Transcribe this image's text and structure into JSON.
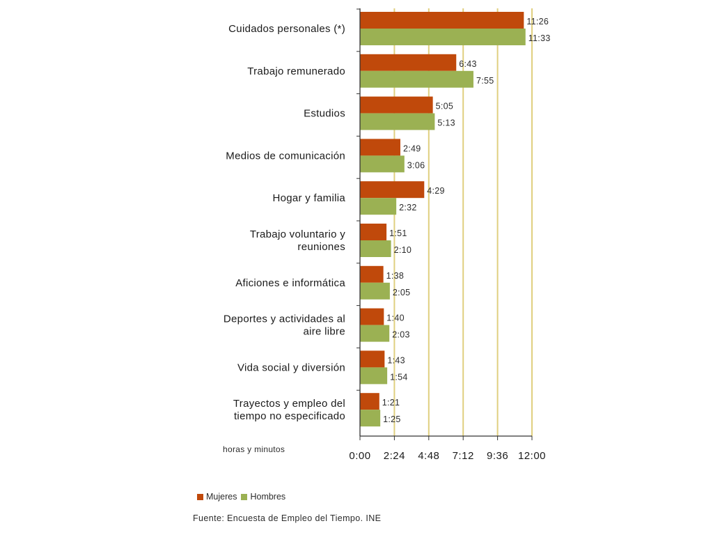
{
  "chart_data": {
    "type": "bar",
    "orientation": "horizontal",
    "categories": [
      [
        "Cuidados personales (*)"
      ],
      [
        "Trabajo remunerado"
      ],
      [
        "Estudios"
      ],
      [
        "Medios de comunicación"
      ],
      [
        "Hogar y familia"
      ],
      [
        "Trabajo voluntario y",
        "reuniones"
      ],
      [
        "Aficiones e informática"
      ],
      [
        "Deportes y actividades al",
        "aire libre"
      ],
      [
        "Vida social y diversión"
      ],
      [
        "Trayectos y empleo del",
        "tiempo no especificado"
      ]
    ],
    "series": [
      {
        "name": "Mujeres",
        "color": "#c0490b",
        "values": [
          "11:26",
          "6:43",
          "5:05",
          "2:49",
          "4:29",
          "1:51",
          "1:38",
          "1:40",
          "1:43",
          "1:21"
        ]
      },
      {
        "name": "Hombres",
        "color": "#9bb153",
        "values": [
          "11:33",
          "7:55",
          "5:13",
          "3:06",
          "2:32",
          "2:10",
          "2:05",
          "2:03",
          "1:54",
          "1:25"
        ]
      }
    ],
    "xlim": [
      "0:00",
      "12:00"
    ],
    "xticks": [
      "0:00",
      "2:24",
      "4:48",
      "7:12",
      "9:36",
      "12:00"
    ],
    "xlabel": "horas y minutos",
    "grid": true,
    "grid_color": "#e0cf7f",
    "legend_position": "bottom-left",
    "source": "Fuente: Encuesta de Empleo del Tiempo. INE"
  }
}
